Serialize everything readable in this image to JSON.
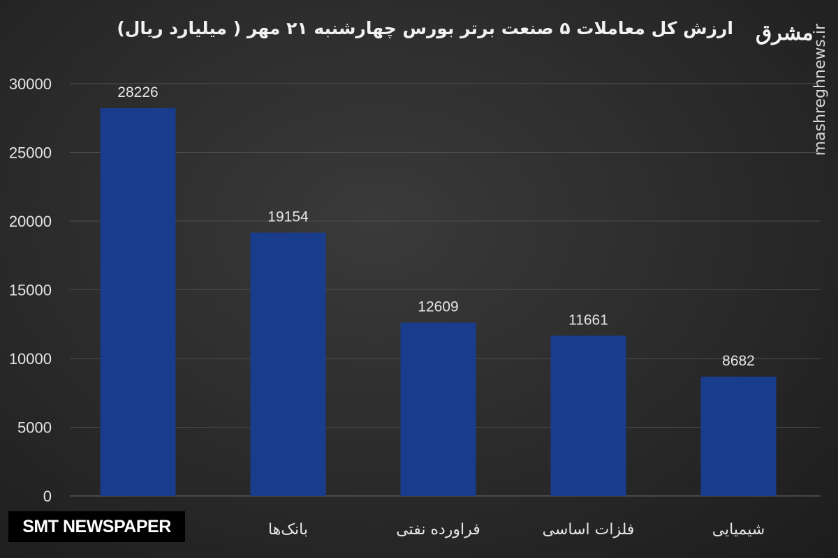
{
  "header": {
    "title": "ارزش کل معاملات ۵ صنعت برتر بورس چهارشنبه ۲۱ مهر ( میلیارد ریال)",
    "logo_text": "مشرق",
    "site_url": "mashreghnews.ir"
  },
  "footer": {
    "badge_text": "SMT NEWSPAPER"
  },
  "colors": {
    "bar": "#1a3c8c",
    "grid": "#4e4e4e",
    "text": "#e6e6e6"
  },
  "chart_data": {
    "type": "bar",
    "title": "ارزش کل معاملات ۵ صنعت برتر بورس چهارشنبه ۲۱ مهر ( میلیارد ریال)",
    "categories": [
      "",
      "بانک‌ها",
      "فراورده نفتی",
      "فلزات اساسی",
      "شیمیایی"
    ],
    "values": [
      28226,
      19154,
      12609,
      11661,
      8682
    ],
    "ylim": [
      0,
      30000
    ],
    "yticks": [
      0,
      5000,
      10000,
      15000,
      20000,
      25000,
      30000
    ],
    "grid": true,
    "legend": "none"
  }
}
